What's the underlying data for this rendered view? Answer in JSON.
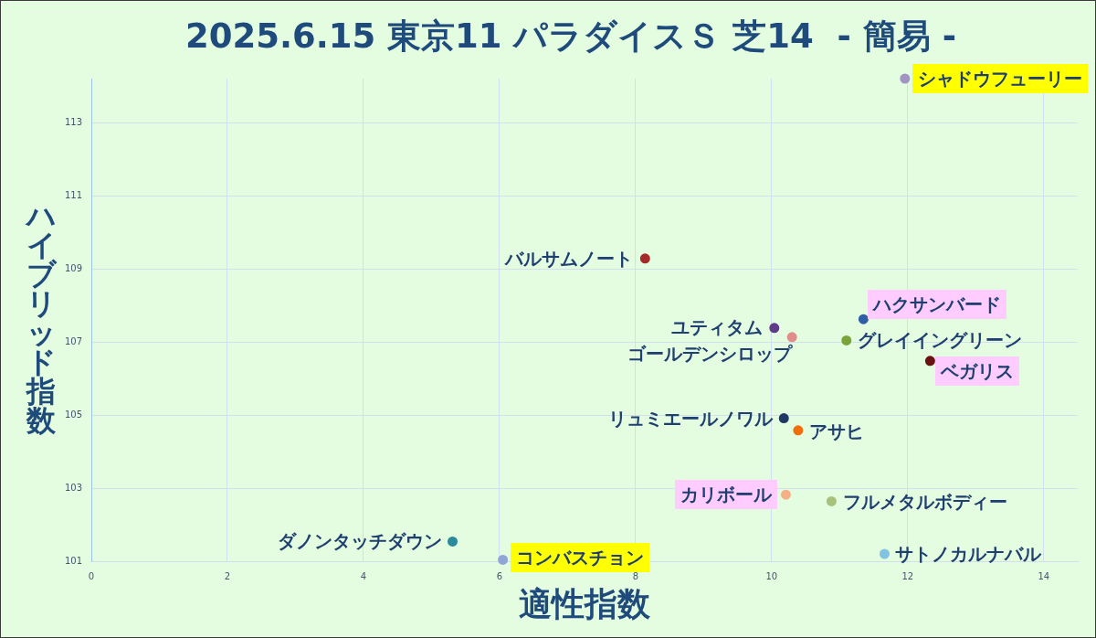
{
  "chart_data": {
    "type": "scatter",
    "title": "2025.6.15 東京11 パラダイスＳ 芝14  - 簡易 -",
    "xlabel": "適性指数",
    "ylabel": "ハイブリッド指数",
    "xlim": [
      0,
      14.5
    ],
    "ylim": [
      101,
      114.2
    ],
    "xticks": [
      0,
      2,
      4,
      6,
      8,
      10,
      12,
      14
    ],
    "yticks": [
      101,
      103,
      105,
      107,
      109,
      111,
      113
    ],
    "grid": true,
    "marker": "circle",
    "series": [
      {
        "name": "シャドウフューリー",
        "color": "#a394c6",
        "x": [
          11.96
        ],
        "values": [
          114.2
        ]
      },
      {
        "name": "バルサムノート",
        "color": "#a52a2a",
        "x": [
          8.14
        ],
        "values": [
          109.28
        ]
      },
      {
        "name": "ハクサンバード",
        "color": "#2f5ea6",
        "x": [
          11.35
        ],
        "values": [
          107.62
        ]
      },
      {
        "name": "ユティタム",
        "color": "#5e3c8a",
        "x": [
          10.04
        ],
        "values": [
          107.38
        ]
      },
      {
        "name": "ゴールデンシロップ",
        "color": "#e38c8c",
        "x": [
          10.3
        ],
        "values": [
          107.13
        ]
      },
      {
        "name": "グレイイングリーン",
        "color": "#78a43a",
        "x": [
          11.1
        ],
        "values": [
          107.04
        ]
      },
      {
        "name": "ベガリス",
        "color": "#6a1212",
        "x": [
          12.33
        ],
        "values": [
          106.48
        ]
      },
      {
        "name": "リュミエールノワル",
        "color": "#1f3864",
        "x": [
          10.18
        ],
        "values": [
          104.91
        ]
      },
      {
        "name": "アサヒ",
        "color": "#f06e0c",
        "x": [
          10.39
        ],
        "values": [
          104.58
        ]
      },
      {
        "name": "カリボール",
        "color": "#f5b086",
        "x": [
          10.21
        ],
        "values": [
          102.82
        ]
      },
      {
        "name": "フルメタルボディー",
        "color": "#a8c27e",
        "x": [
          10.88
        ],
        "values": [
          102.64
        ]
      },
      {
        "name": "サトノカルナバル",
        "color": "#82c3e2",
        "x": [
          11.66
        ],
        "values": [
          101.2
        ]
      },
      {
        "name": "ダノンタッチダウン",
        "color": "#2a8a9c",
        "x": [
          5.31
        ],
        "values": [
          101.54
        ]
      },
      {
        "name": "コンバスチョン",
        "color": "#8ea7d6",
        "x": [
          6.05
        ],
        "values": [
          101.04
        ]
      }
    ]
  }
}
